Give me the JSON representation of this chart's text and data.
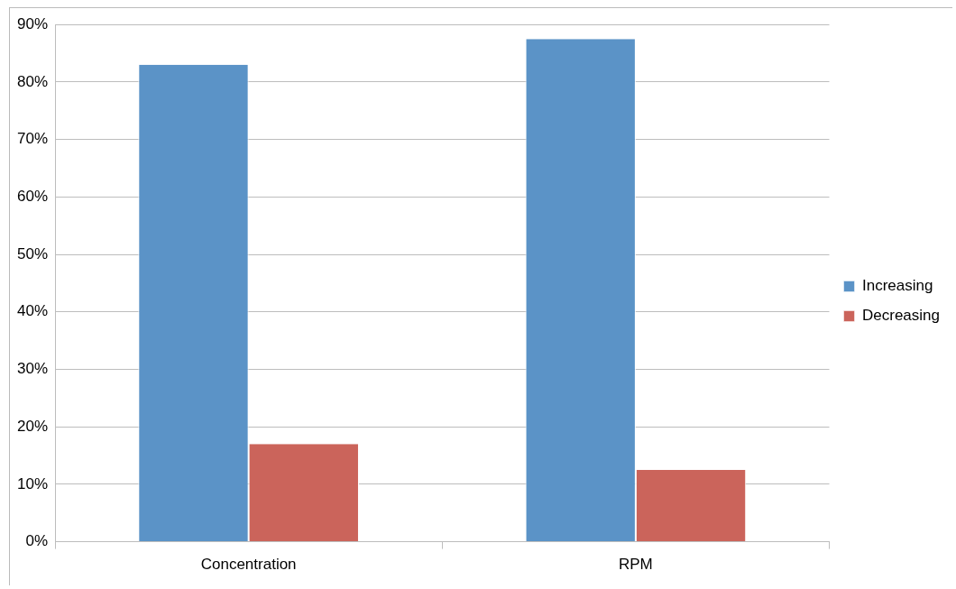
{
  "chart_data": {
    "type": "bar",
    "categories": [
      "Concentration",
      "RPM"
    ],
    "series": [
      {
        "name": "Increasing",
        "color": "#5b93c7",
        "values": [
          83,
          87.5
        ]
      },
      {
        "name": "Decreasing",
        "color": "#cb645b",
        "values": [
          17,
          12.5
        ]
      }
    ],
    "ylim": [
      0,
      90
    ],
    "yticks": [
      {
        "value": 0,
        "label": "0%"
      },
      {
        "value": 10,
        "label": "10%"
      },
      {
        "value": 20,
        "label": "20%"
      },
      {
        "value": 30,
        "label": "30%"
      },
      {
        "value": 40,
        "label": "40%"
      },
      {
        "value": 50,
        "label": "50%"
      },
      {
        "value": 60,
        "label": "60%"
      },
      {
        "value": 70,
        "label": "70%"
      },
      {
        "value": 80,
        "label": "80%"
      },
      {
        "value": 90,
        "label": "90%"
      }
    ],
    "grid": "y",
    "legend": "right"
  }
}
